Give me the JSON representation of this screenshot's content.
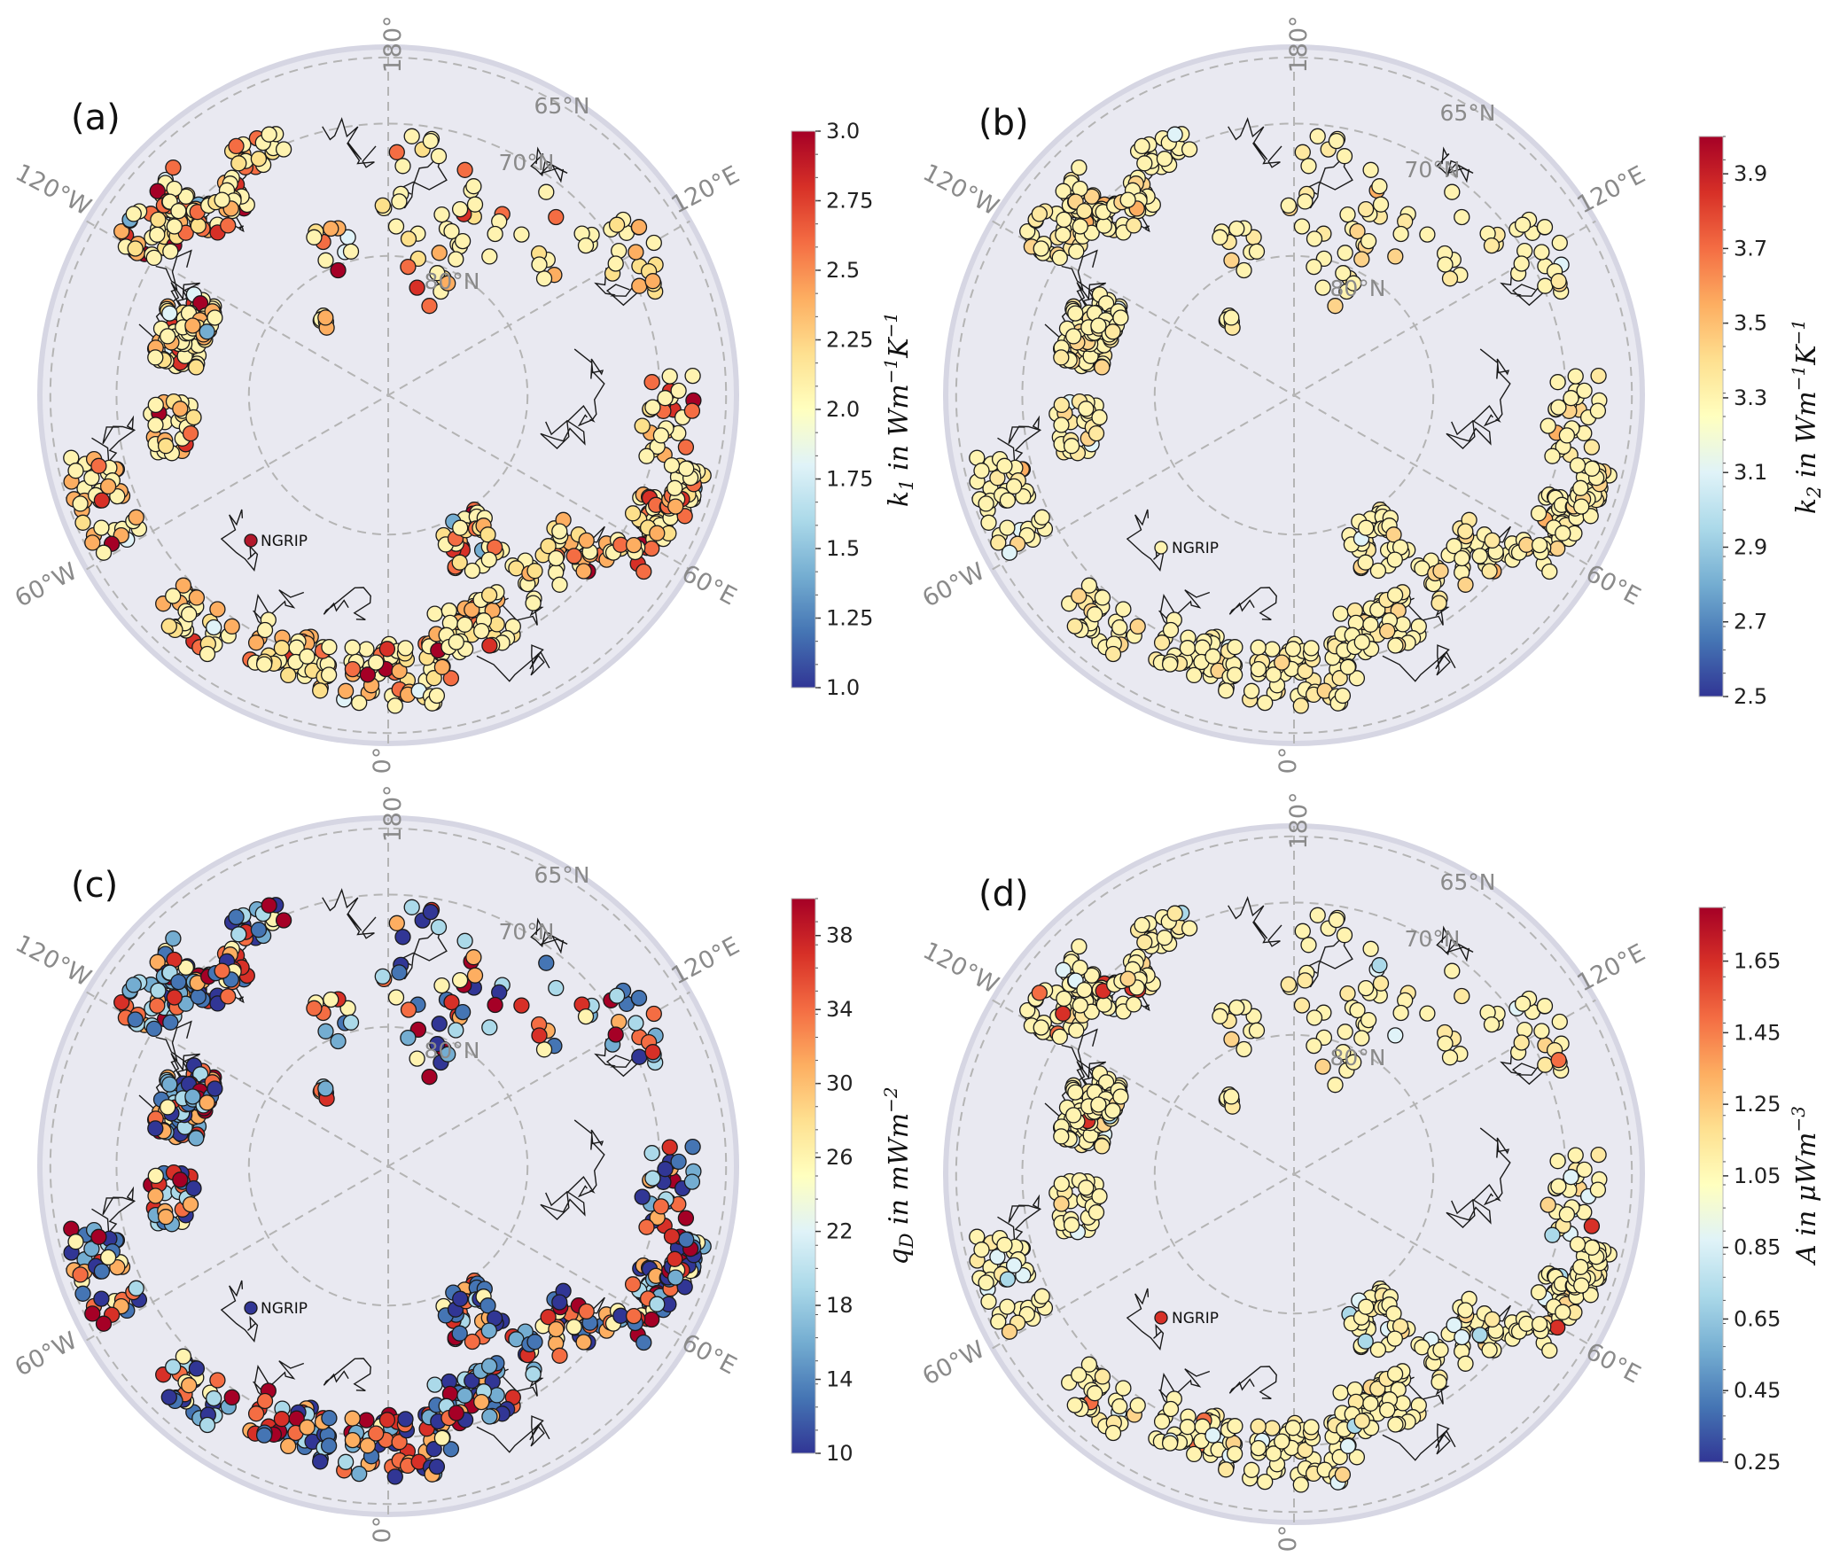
{
  "longitude_labels": [
    "180°",
    "120°E",
    "60°E",
    "0°",
    "60°W",
    "120°W"
  ],
  "latitude_labels": [
    "65°N",
    "70°N",
    "80°N"
  ],
  "station_label": "NGRIP",
  "panels": [
    {
      "id": "a",
      "label": "(a)",
      "colorbar": {
        "title": {
          "pre": "k",
          "sub": "1",
          "mid": " in Wm",
          "sup1": "−1",
          "k": "K",
          "sup2": "−1"
        },
        "min": 1.0,
        "max": 3.0,
        "ticks": [
          "1.0",
          "1.25",
          "1.5",
          "1.75",
          "2.0",
          "2.25",
          "2.5",
          "2.75",
          "3.0"
        ]
      },
      "ngrip_color": "#b2182b",
      "palette": [
        {
          "c": "#fff3b0",
          "w": 48
        },
        {
          "c": "#fde08b",
          "w": 18
        },
        {
          "c": "#fdae61",
          "w": 16
        },
        {
          "c": "#f46d43",
          "w": 8
        },
        {
          "c": "#d73027",
          "w": 4
        },
        {
          "c": "#a50026",
          "w": 3
        },
        {
          "c": "#e0f3f8",
          "w": 2
        },
        {
          "c": "#74add1",
          "w": 1
        }
      ]
    },
    {
      "id": "b",
      "label": "(b)",
      "colorbar": {
        "title": {
          "pre": "k",
          "sub": "2",
          "mid": " in Wm",
          "sup1": "−1",
          "k": "K",
          "sup2": "−1"
        },
        "min": 2.5,
        "max": 4.0,
        "ticks": [
          "2.5",
          "2.7",
          "2.9",
          "3.1",
          "3.3",
          "3.5",
          "3.7",
          "3.9"
        ]
      },
      "ngrip_color": "#fff3b0",
      "palette": [
        {
          "c": "#fff3b0",
          "w": 70
        },
        {
          "c": "#fee8a0",
          "w": 18
        },
        {
          "c": "#fdd38a",
          "w": 9
        },
        {
          "c": "#e0f3f8",
          "w": 2
        },
        {
          "c": "#fdae61",
          "w": 1
        }
      ]
    },
    {
      "id": "c",
      "label": "(c)",
      "colorbar": {
        "title": {
          "pre": "q",
          "sub": "D",
          "mid": " in mWm",
          "sup1": "−2",
          "k": "",
          "sup2": ""
        },
        "min": 10,
        "max": 40,
        "ticks": [
          "10",
          "14",
          "18",
          "22",
          "26",
          "30",
          "34",
          "38"
        ]
      },
      "ngrip_color": "#313695",
      "palette": [
        {
          "c": "#313695",
          "w": 16
        },
        {
          "c": "#4575b4",
          "w": 14
        },
        {
          "c": "#74add1",
          "w": 12
        },
        {
          "c": "#abd9e9",
          "w": 10
        },
        {
          "c": "#fff3b0",
          "w": 8
        },
        {
          "c": "#fdae61",
          "w": 10
        },
        {
          "c": "#f46d43",
          "w": 10
        },
        {
          "c": "#d73027",
          "w": 10
        },
        {
          "c": "#a50026",
          "w": 10
        }
      ]
    },
    {
      "id": "d",
      "label": "(d)",
      "colorbar": {
        "title": {
          "pre": "A",
          "sub": "",
          "mid": " in μWm",
          "sup1": "−3",
          "k": "",
          "sup2": ""
        },
        "min": 0.25,
        "max": 1.8,
        "ticks": [
          "0.25",
          "0.45",
          "0.65",
          "0.85",
          "1.05",
          "1.25",
          "1.45",
          "1.65"
        ]
      },
      "ngrip_color": "#d73027",
      "palette": [
        {
          "c": "#fff3b0",
          "w": 74
        },
        {
          "c": "#fee8a0",
          "w": 12
        },
        {
          "c": "#fdd38a",
          "w": 6
        },
        {
          "c": "#e0f3f8",
          "w": 4
        },
        {
          "c": "#abd9e9",
          "w": 2
        },
        {
          "c": "#f46d43",
          "w": 1
        },
        {
          "c": "#d73027",
          "w": 1
        }
      ]
    }
  ],
  "colors": {
    "map_face": "#e9e9f1",
    "map_edge": "#d6d6e3",
    "grid": "#b4b4b4",
    "coast": "#1a1a1a",
    "marker_edge": "#1a1a1a",
    "colormap": [
      "#313695",
      "#4575b4",
      "#74add1",
      "#abd9e9",
      "#e0f3f8",
      "#ffffbf",
      "#fee090",
      "#fdae61",
      "#f46d43",
      "#d73027",
      "#a50026"
    ]
  }
}
